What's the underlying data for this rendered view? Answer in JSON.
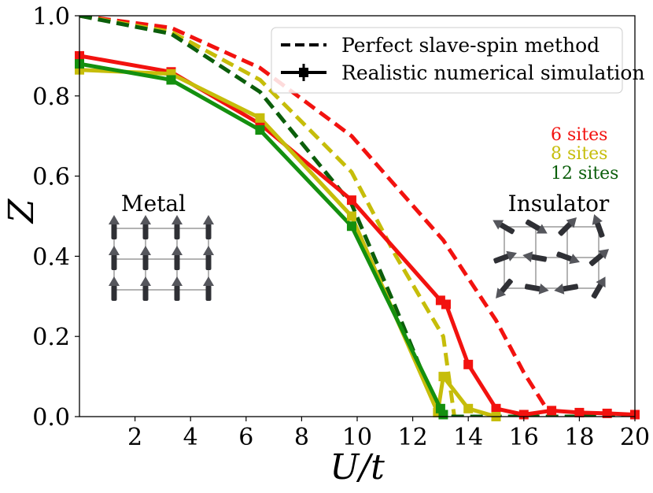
{
  "chart_data": {
    "type": "line",
    "title": "",
    "xlabel": "U/t",
    "ylabel": "Z",
    "xlim": [
      0,
      20
    ],
    "ylim": [
      0,
      1.0
    ],
    "xticks": [
      2,
      4,
      6,
      8,
      10,
      12,
      14,
      16,
      18,
      20
    ],
    "xtick_labels": [
      "2",
      "4",
      "6",
      "8",
      "10",
      "12",
      "14",
      "16",
      "18",
      "20"
    ],
    "yticks": [
      0.0,
      0.2,
      0.4,
      0.6,
      0.8,
      1.0
    ],
    "ytick_labels": [
      "0.0",
      "0.2",
      "0.4",
      "0.6",
      "0.8",
      "1.0"
    ],
    "grid": false,
    "legend": {
      "position": "top-right",
      "entries": [
        {
          "label": "Perfect slave-spin method",
          "style": "dashed"
        },
        {
          "label": "Realistic numerical simulation",
          "style": "solid-with-markers"
        }
      ]
    },
    "site_labels": [
      {
        "label": "6 sites",
        "color": "#f2120f"
      },
      {
        "label": "8 sites",
        "color": "#c6bd0a"
      },
      {
        "label": "12 sites",
        "color": "#0b5e0b"
      }
    ],
    "annotations": [
      "Metal",
      "Insulator"
    ],
    "series": [
      {
        "name": "6 sites (slave-spin)",
        "style": "dashed",
        "color": "#f2120f",
        "x": [
          0,
          3.3,
          6.5,
          9.8,
          13.1,
          15,
          16,
          17
        ],
        "y": [
          1.0,
          0.97,
          0.87,
          0.7,
          0.44,
          0.24,
          0.11,
          0.0
        ]
      },
      {
        "name": "8 sites (slave-spin)",
        "style": "dashed",
        "color": "#c6bd0a",
        "x": [
          0,
          3.3,
          6.5,
          9.8,
          11.4,
          13.1,
          13.5
        ],
        "y": [
          1.0,
          0.96,
          0.84,
          0.61,
          0.4,
          0.2,
          0.0
        ]
      },
      {
        "name": "12 sites (slave-spin)",
        "style": "dashed",
        "color": "#0b5e0b",
        "x": [
          0,
          3.3,
          6.5,
          9.8,
          11.4,
          13.0,
          14.5,
          20
        ],
        "y": [
          1.0,
          0.955,
          0.81,
          0.53,
          0.27,
          0.0,
          0.0,
          0.0
        ]
      },
      {
        "name": "6 sites (simulation)",
        "style": "solid",
        "color": "#f2120f",
        "x": [
          0,
          3.3,
          6.5,
          9.8,
          13.0,
          13.2,
          14.0,
          15.0,
          16.0,
          17.0,
          18.0,
          19.0,
          20.0
        ],
        "y": [
          0.9,
          0.86,
          0.73,
          0.54,
          0.29,
          0.28,
          0.13,
          0.02,
          0.005,
          0.015,
          0.01,
          0.008,
          0.005
        ]
      },
      {
        "name": "8 sites (simulation)",
        "style": "solid",
        "color": "#c6bd0a",
        "x": [
          0,
          3.3,
          6.5,
          9.8,
          12.9,
          13.1,
          14.0,
          15.0
        ],
        "y": [
          0.865,
          0.855,
          0.745,
          0.5,
          0.01,
          0.1,
          0.02,
          0.0
        ]
      },
      {
        "name": "12 sites (simulation)",
        "style": "solid",
        "color": "#14900f",
        "x": [
          0,
          3.3,
          6.5,
          9.8,
          13.0,
          13.1
        ],
        "y": [
          0.88,
          0.84,
          0.715,
          0.475,
          0.02,
          0.005
        ]
      }
    ]
  }
}
